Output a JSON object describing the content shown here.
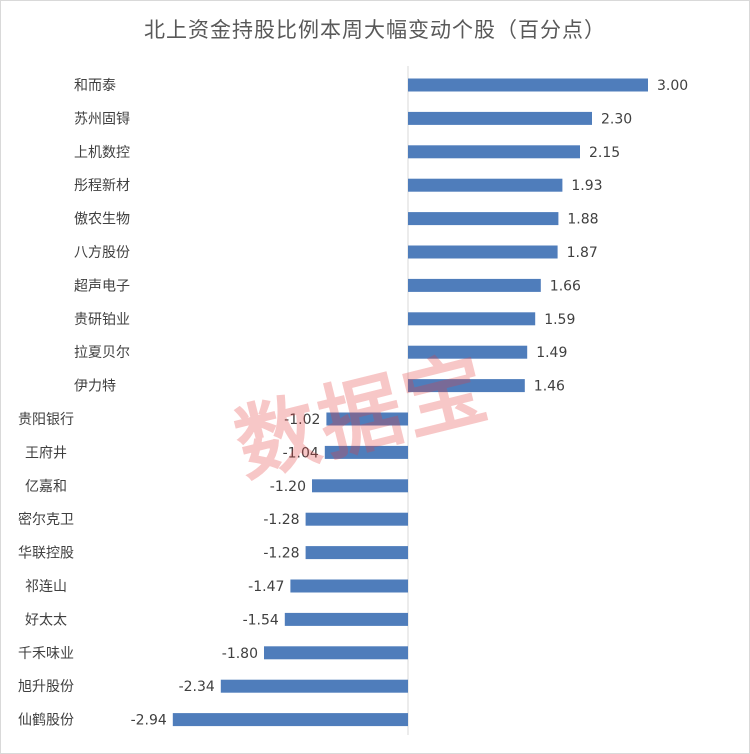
{
  "chart_data": {
    "type": "bar",
    "orientation": "horizontal",
    "title": "北上资金持股比例本周大幅变动个股（百分点）",
    "categories": [
      "和而泰",
      "苏州固锝",
      "上机数控",
      "彤程新材",
      "傲农生物",
      "八方股份",
      "超声电子",
      "贵研铂业",
      "拉夏贝尔",
      "伊力特",
      "贵阳银行",
      "王府井",
      "亿嘉和",
      "密尔克卫",
      "华联控股",
      "祁连山",
      "好太太",
      "千禾味业",
      "旭升股份",
      "仙鹤股份"
    ],
    "values": [
      3.0,
      2.3,
      2.15,
      1.93,
      1.88,
      1.87,
      1.66,
      1.59,
      1.49,
      1.46,
      -1.02,
      -1.04,
      -1.2,
      -1.28,
      -1.28,
      -1.47,
      -1.54,
      -1.8,
      -2.34,
      -2.94
    ],
    "value_labels": [
      "3.00",
      "2.30",
      "2.15",
      "1.93",
      "1.88",
      "1.87",
      "1.66",
      "1.59",
      "1.49",
      "1.46",
      "-1.02",
      "-1.04",
      "-1.20",
      "-1.28",
      "-1.28",
      "-1.47",
      "-1.54",
      "-1.80",
      "-2.34",
      "-2.94"
    ],
    "xlim": [
      -3.0,
      3.0
    ],
    "grid": false,
    "legend": "none",
    "bar_color": "#4f7dbb",
    "label_color": "#404040",
    "axis_color": "#d9d9d9"
  },
  "watermark": "数据宝"
}
